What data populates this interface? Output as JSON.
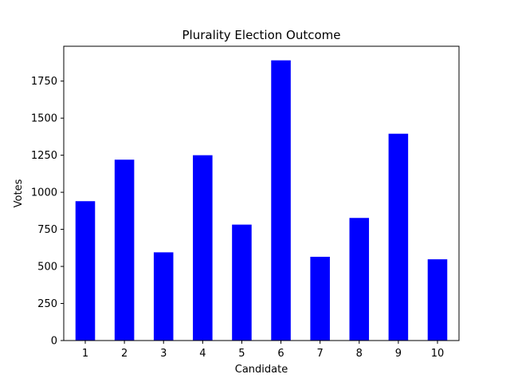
{
  "chart_data": {
    "type": "bar",
    "title": "Plurality Election Outcome",
    "xlabel": "Candidate",
    "ylabel": "Votes",
    "categories": [
      "1",
      "2",
      "3",
      "4",
      "5",
      "6",
      "7",
      "8",
      "9",
      "10"
    ],
    "values": [
      940,
      1220,
      595,
      1250,
      782,
      1890,
      565,
      827,
      1395,
      548
    ],
    "ylim": [
      0,
      1985
    ],
    "yticks": [
      0,
      250,
      500,
      750,
      1000,
      1250,
      1500,
      1750
    ],
    "ytick_labels": [
      "0",
      "250",
      "500",
      "750",
      "1000",
      "1250",
      "1500",
      "1750"
    ],
    "bar_color": "#0000ff",
    "grid": false,
    "legend": "none"
  }
}
